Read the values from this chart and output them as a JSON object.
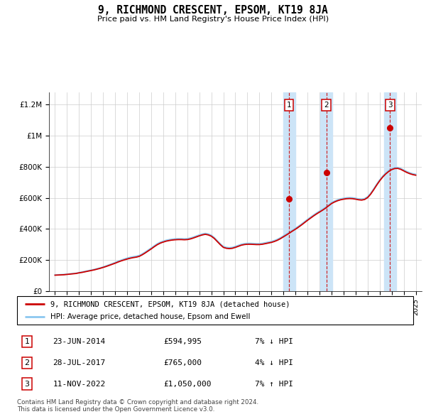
{
  "title": "9, RICHMOND CRESCENT, EPSOM, KT19 8JA",
  "subtitle": "Price paid vs. HM Land Registry's House Price Index (HPI)",
  "ylabel_ticks": [
    "£0",
    "£200K",
    "£400K",
    "£600K",
    "£800K",
    "£1M",
    "£1.2M"
  ],
  "ytick_values": [
    0,
    200000,
    400000,
    600000,
    800000,
    1000000,
    1200000
  ],
  "ylim": [
    0,
    1280000
  ],
  "xlim_start": 1994.5,
  "xlim_end": 2025.5,
  "transaction_dates": [
    2014.47,
    2017.57,
    2022.86
  ],
  "transaction_prices": [
    594995,
    765000,
    1050000
  ],
  "transaction_labels": [
    "1",
    "2",
    "3"
  ],
  "transaction_info": [
    {
      "num": "1",
      "date": "23-JUN-2014",
      "price": "£594,995",
      "hpi": "7% ↓ HPI"
    },
    {
      "num": "2",
      "date": "28-JUL-2017",
      "price": "£765,000",
      "hpi": "4% ↓ HPI"
    },
    {
      "num": "3",
      "date": "11-NOV-2022",
      "price": "£1,050,000",
      "hpi": "7% ↑ HPI"
    }
  ],
  "legend_property_label": "9, RICHMOND CRESCENT, EPSOM, KT19 8JA (detached house)",
  "legend_hpi_label": "HPI: Average price, detached house, Epsom and Ewell",
  "footer": "Contains HM Land Registry data © Crown copyright and database right 2024.\nThis data is licensed under the Open Government Licence v3.0.",
  "hpi_color": "#8cc8f0",
  "property_color": "#cc0000",
  "background_color": "#ffffff",
  "grid_color": "#cccccc",
  "shade_color": "#cce4f7",
  "years": [
    1995.0,
    1995.25,
    1995.5,
    1995.75,
    1996.0,
    1996.25,
    1996.5,
    1996.75,
    1997.0,
    1997.25,
    1997.5,
    1997.75,
    1998.0,
    1998.25,
    1998.5,
    1998.75,
    1999.0,
    1999.25,
    1999.5,
    1999.75,
    2000.0,
    2000.25,
    2000.5,
    2000.75,
    2001.0,
    2001.25,
    2001.5,
    2001.75,
    2002.0,
    2002.25,
    2002.5,
    2002.75,
    2003.0,
    2003.25,
    2003.5,
    2003.75,
    2004.0,
    2004.25,
    2004.5,
    2004.75,
    2005.0,
    2005.25,
    2005.5,
    2005.75,
    2006.0,
    2006.25,
    2006.5,
    2006.75,
    2007.0,
    2007.25,
    2007.5,
    2007.75,
    2008.0,
    2008.25,
    2008.5,
    2008.75,
    2009.0,
    2009.25,
    2009.5,
    2009.75,
    2010.0,
    2010.25,
    2010.5,
    2010.75,
    2011.0,
    2011.25,
    2011.5,
    2011.75,
    2012.0,
    2012.25,
    2012.5,
    2012.75,
    2013.0,
    2013.25,
    2013.5,
    2013.75,
    2014.0,
    2014.25,
    2014.5,
    2014.75,
    2015.0,
    2015.25,
    2015.5,
    2015.75,
    2016.0,
    2016.25,
    2016.5,
    2016.75,
    2017.0,
    2017.25,
    2017.5,
    2017.75,
    2018.0,
    2018.25,
    2018.5,
    2018.75,
    2019.0,
    2019.25,
    2019.5,
    2019.75,
    2020.0,
    2020.25,
    2020.5,
    2020.75,
    2021.0,
    2021.25,
    2021.5,
    2021.75,
    2022.0,
    2022.25,
    2022.5,
    2022.75,
    2023.0,
    2023.25,
    2023.5,
    2023.75,
    2024.0,
    2024.25,
    2024.5,
    2024.75,
    2025.0
  ],
  "hpi_values": [
    105000,
    106000,
    107000,
    108000,
    110000,
    112000,
    114000,
    116000,
    120000,
    124000,
    128000,
    132000,
    136000,
    140000,
    145000,
    150000,
    156000,
    163000,
    170000,
    177000,
    185000,
    193000,
    200000,
    207000,
    213000,
    218000,
    222000,
    225000,
    230000,
    240000,
    252000,
    265000,
    278000,
    292000,
    305000,
    315000,
    322000,
    328000,
    332000,
    335000,
    337000,
    338000,
    338000,
    337000,
    338000,
    342000,
    348000,
    355000,
    362000,
    368000,
    372000,
    368000,
    360000,
    345000,
    325000,
    305000,
    288000,
    282000,
    280000,
    282000,
    288000,
    295000,
    302000,
    306000,
    308000,
    308000,
    307000,
    306000,
    306000,
    308000,
    312000,
    316000,
    320000,
    326000,
    334000,
    344000,
    356000,
    368000,
    380000,
    393000,
    405000,
    418000,
    432000,
    447000,
    462000,
    476000,
    490000,
    503000,
    515000,
    527000,
    540000,
    555000,
    570000,
    580000,
    588000,
    594000,
    598000,
    601000,
    602000,
    601000,
    598000,
    594000,
    592000,
    596000,
    608000,
    630000,
    658000,
    688000,
    716000,
    740000,
    760000,
    776000,
    788000,
    795000,
    796000,
    790000,
    780000,
    770000,
    762000,
    756000,
    752000
  ],
  "prop_values": [
    103000,
    104000,
    105000,
    106000,
    108000,
    110000,
    112000,
    114000,
    118000,
    121000,
    125000,
    129000,
    133000,
    137000,
    142000,
    147000,
    153000,
    159000,
    166000,
    173000,
    180000,
    188000,
    195000,
    201000,
    207000,
    212000,
    216000,
    219000,
    224000,
    234000,
    246000,
    259000,
    272000,
    286000,
    299000,
    309000,
    316000,
    322000,
    326000,
    329000,
    331000,
    332000,
    332000,
    331000,
    332000,
    336000,
    342000,
    349000,
    356000,
    362000,
    366000,
    362000,
    354000,
    339000,
    319000,
    299000,
    282000,
    276000,
    274000,
    276000,
    282000,
    289000,
    296000,
    300000,
    302000,
    302000,
    301000,
    300000,
    300000,
    302000,
    306000,
    310000,
    314000,
    320000,
    328000,
    338000,
    350000,
    362000,
    374000,
    387000,
    399000,
    412000,
    426000,
    441000,
    456000,
    470000,
    484000,
    497000,
    509000,
    521000,
    534000,
    549000,
    564000,
    574000,
    582000,
    588000,
    592000,
    595000,
    596000,
    595000,
    592000,
    588000,
    586000,
    590000,
    602000,
    624000,
    652000,
    682000,
    710000,
    734000,
    754000,
    770000,
    782000,
    789000,
    790000,
    784000,
    774000,
    764000,
    756000,
    750000,
    746000
  ]
}
